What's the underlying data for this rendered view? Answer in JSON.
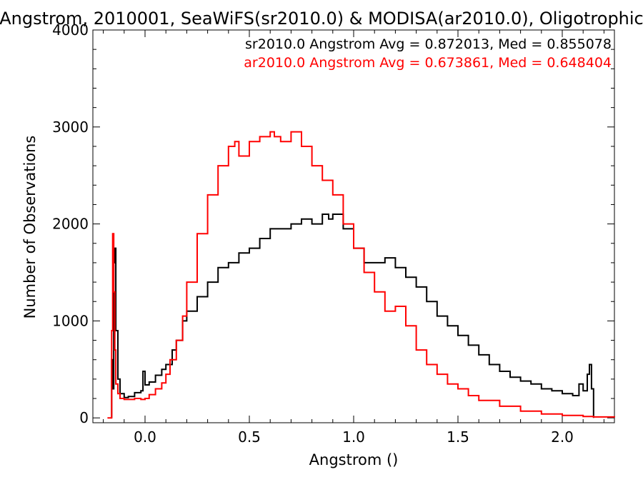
{
  "chart_data": {
    "type": "line",
    "title": "Angstrom, 2010001, SeaWiFS(sr2010.0) & MODISA(ar2010.0), Oligotrophic",
    "xlabel": "Angstrom ()",
    "ylabel": "Number of Observations",
    "xlim": [
      -0.25,
      2.25
    ],
    "ylim": [
      -50,
      4000
    ],
    "xticks": [
      0.0,
      0.5,
      1.0,
      1.5,
      2.0
    ],
    "xtick_labels": [
      "0.0",
      "0.5",
      "1.0",
      "1.5",
      "2.0"
    ],
    "yticks": [
      0,
      1000,
      2000,
      3000,
      4000
    ],
    "ytick_labels": [
      "0",
      "1000",
      "2000",
      "3000",
      "4000"
    ],
    "grid": false,
    "style": "step",
    "legend_position": "top-right",
    "series": [
      {
        "name": "sr2010.0",
        "color": "#000000",
        "legend_text": "sr2010.0 Angstrom Avg = 0.872013, Med = 0.855078",
        "x": [
          -0.16,
          -0.155,
          -0.15,
          -0.145,
          -0.14,
          -0.13,
          -0.12,
          -0.1,
          -0.08,
          -0.05,
          -0.02,
          -0.01,
          0.0,
          0.02,
          0.05,
          0.08,
          0.1,
          0.13,
          0.15,
          0.18,
          0.2,
          0.25,
          0.3,
          0.35,
          0.4,
          0.45,
          0.5,
          0.55,
          0.6,
          0.65,
          0.7,
          0.75,
          0.8,
          0.85,
          0.88,
          0.9,
          0.95,
          1.0,
          1.05,
          1.1,
          1.15,
          1.2,
          1.25,
          1.3,
          1.35,
          1.4,
          1.45,
          1.5,
          1.55,
          1.6,
          1.65,
          1.7,
          1.75,
          1.8,
          1.85,
          1.9,
          1.95,
          2.0,
          2.05,
          2.08,
          2.1,
          2.12,
          2.13,
          2.14,
          2.15
        ],
        "y": [
          600,
          300,
          1600,
          1750,
          900,
          400,
          250,
          210,
          220,
          260,
          280,
          480,
          340,
          370,
          440,
          500,
          550,
          700,
          800,
          1000,
          1100,
          1250,
          1400,
          1550,
          1600,
          1700,
          1750,
          1850,
          1950,
          1950,
          2000,
          2050,
          2000,
          2100,
          2050,
          2100,
          1950,
          1750,
          1600,
          1600,
          1650,
          1550,
          1450,
          1350,
          1200,
          1050,
          950,
          850,
          750,
          650,
          550,
          480,
          420,
          380,
          350,
          300,
          280,
          250,
          230,
          350,
          280,
          450,
          550,
          300,
          0
        ]
      },
      {
        "name": "ar2010.0",
        "color": "#ff0000",
        "legend_text": "ar2010.0 Angstrom Avg = 0.673861, Med = 0.648404",
        "x": [
          -0.18,
          -0.165,
          -0.16,
          -0.155,
          -0.15,
          -0.145,
          -0.14,
          -0.13,
          -0.12,
          -0.1,
          -0.08,
          -0.05,
          -0.02,
          0.0,
          0.02,
          0.05,
          0.08,
          0.1,
          0.12,
          0.15,
          0.18,
          0.2,
          0.25,
          0.3,
          0.35,
          0.4,
          0.43,
          0.45,
          0.5,
          0.55,
          0.6,
          0.62,
          0.65,
          0.7,
          0.75,
          0.8,
          0.85,
          0.9,
          0.95,
          1.0,
          1.05,
          1.1,
          1.15,
          1.2,
          1.25,
          1.3,
          1.35,
          1.4,
          1.45,
          1.5,
          1.55,
          1.6,
          1.7,
          1.8,
          1.9,
          2.0,
          2.1,
          2.15,
          2.25
        ],
        "y": [
          0,
          0,
          900,
          1900,
          1300,
          700,
          350,
          250,
          200,
          190,
          190,
          200,
          190,
          200,
          240,
          300,
          360,
          450,
          600,
          800,
          1050,
          1400,
          1900,
          2300,
          2600,
          2800,
          2850,
          2700,
          2850,
          2900,
          2950,
          2900,
          2850,
          2950,
          2800,
          2600,
          2450,
          2300,
          2000,
          1750,
          1500,
          1300,
          1100,
          1150,
          950,
          700,
          550,
          450,
          350,
          300,
          230,
          180,
          120,
          70,
          40,
          25,
          15,
          10,
          5
        ]
      }
    ]
  }
}
